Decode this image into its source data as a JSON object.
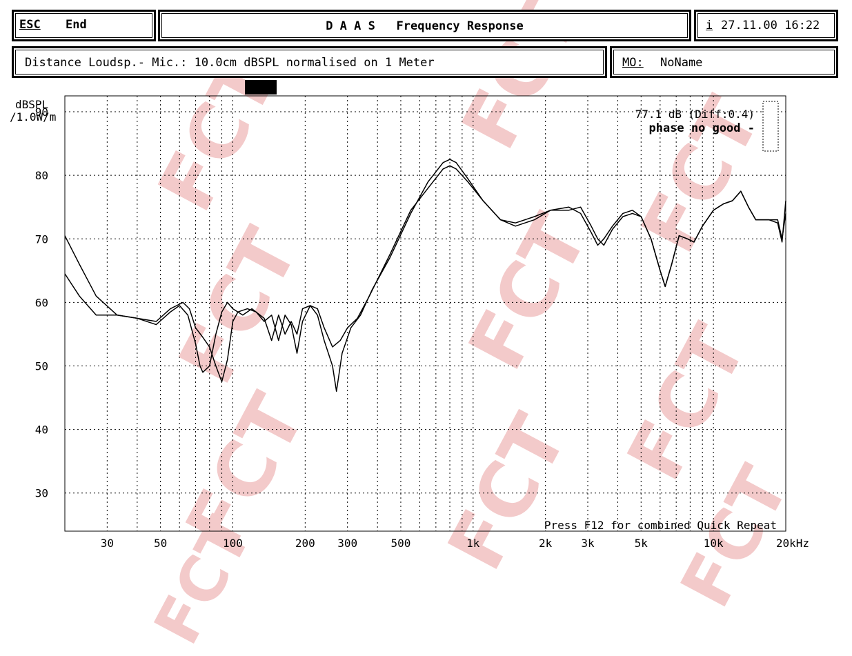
{
  "header": {
    "esc_label": "ESC",
    "end_label": "End",
    "title": "D A A S   Frequency Response",
    "info_key": "i",
    "datetime": "27.11.00 16:22"
  },
  "info_bar": {
    "distance_text": "Distance Loudsp.- Mic.: 10.0cm dBSPL normalised on 1 Meter",
    "mo_key": "MO:",
    "mo_value": "NoName"
  },
  "watermark": {
    "text": "FCT",
    "color": "#f3caca"
  },
  "chart_data": {
    "type": "line",
    "ylabel": "dBSPL\n/1.0W/m",
    "ylim": [
      24,
      92.5
    ],
    "yticks": [
      30,
      40,
      50,
      60,
      70,
      80,
      90
    ],
    "xscale": "log",
    "xlim": [
      20,
      20000
    ],
    "xticks": [
      {
        "value": 30,
        "label": "30"
      },
      {
        "value": 50,
        "label": "50"
      },
      {
        "value": 100,
        "label": "100"
      },
      {
        "value": 200,
        "label": "200"
      },
      {
        "value": 300,
        "label": "300"
      },
      {
        "value": 500,
        "label": "500"
      },
      {
        "value": 1000,
        "label": "1k"
      },
      {
        "value": 2000,
        "label": "2k"
      },
      {
        "value": 3000,
        "label": "3k"
      },
      {
        "value": 5000,
        "label": "5k"
      },
      {
        "value": 10000,
        "label": "10k"
      },
      {
        "value": 20000,
        "label": "20kHz"
      }
    ],
    "grid": true,
    "annotations": {
      "level": "77.1 dB (Diff:0.4)",
      "phase": "phase no good -",
      "footer": "Press F12 for combined Quick Repeat"
    },
    "series": [
      {
        "points": [
          [
            20,
            64.5
          ],
          [
            23,
            61
          ],
          [
            27,
            58
          ],
          [
            33,
            58
          ],
          [
            40,
            57.5
          ],
          [
            48,
            56.5
          ],
          [
            55,
            58.5
          ],
          [
            60,
            59.5
          ],
          [
            65,
            58
          ],
          [
            70,
            53.5
          ],
          [
            73,
            50
          ],
          [
            75,
            49
          ],
          [
            80,
            50
          ],
          [
            85,
            55
          ],
          [
            90,
            58.5
          ],
          [
            95,
            60
          ],
          [
            100,
            59
          ],
          [
            110,
            58
          ],
          [
            120,
            59
          ],
          [
            135,
            57.5
          ],
          [
            145,
            54
          ],
          [
            155,
            58
          ],
          [
            165,
            55
          ],
          [
            175,
            57
          ],
          [
            185,
            55
          ],
          [
            195,
            59
          ],
          [
            210,
            59.5
          ],
          [
            225,
            58
          ],
          [
            240,
            54
          ],
          [
            260,
            50
          ],
          [
            270,
            46
          ],
          [
            285,
            52
          ],
          [
            310,
            56
          ],
          [
            340,
            58
          ],
          [
            380,
            62
          ],
          [
            450,
            67
          ],
          [
            550,
            74
          ],
          [
            650,
            79
          ],
          [
            750,
            82
          ],
          [
            800,
            82.5
          ],
          [
            850,
            82
          ],
          [
            950,
            79.5
          ],
          [
            1100,
            76
          ],
          [
            1300,
            73
          ],
          [
            1500,
            72.5
          ],
          [
            1800,
            73.5
          ],
          [
            2100,
            74.5
          ],
          [
            2500,
            75
          ],
          [
            2800,
            74
          ],
          [
            3100,
            71
          ],
          [
            3300,
            69
          ],
          [
            3500,
            70
          ],
          [
            3800,
            72
          ],
          [
            4200,
            74
          ],
          [
            4600,
            74.5
          ],
          [
            5000,
            73.5
          ],
          [
            5500,
            70
          ],
          [
            6000,
            65
          ],
          [
            6300,
            62.5
          ],
          [
            6700,
            66
          ],
          [
            7200,
            70.5
          ],
          [
            7800,
            70
          ],
          [
            8300,
            69.5
          ],
          [
            9000,
            72
          ],
          [
            10000,
            74.5
          ],
          [
            11000,
            75.5
          ],
          [
            12000,
            76
          ],
          [
            13000,
            77.5
          ],
          [
            14000,
            75
          ],
          [
            15000,
            73
          ],
          [
            17000,
            73
          ],
          [
            18500,
            72.5
          ],
          [
            19300,
            69.5
          ],
          [
            20000,
            76
          ]
        ]
      },
      {
        "points": [
          [
            20,
            70.5
          ],
          [
            23,
            66
          ],
          [
            27,
            61
          ],
          [
            33,
            58
          ],
          [
            40,
            57.5
          ],
          [
            48,
            57
          ],
          [
            55,
            59
          ],
          [
            62,
            60
          ],
          [
            66,
            59
          ],
          [
            70,
            56
          ],
          [
            75,
            54.5
          ],
          [
            80,
            53
          ],
          [
            85,
            50
          ],
          [
            90,
            47.5
          ],
          [
            95,
            51
          ],
          [
            100,
            57
          ],
          [
            105,
            58.5
          ],
          [
            115,
            59
          ],
          [
            125,
            58.5
          ],
          [
            135,
            57
          ],
          [
            145,
            58
          ],
          [
            155,
            54
          ],
          [
            165,
            58
          ],
          [
            175,
            56.5
          ],
          [
            185,
            52
          ],
          [
            195,
            57
          ],
          [
            210,
            59.5
          ],
          [
            225,
            59
          ],
          [
            240,
            56
          ],
          [
            260,
            53
          ],
          [
            280,
            54
          ],
          [
            300,
            56
          ],
          [
            330,
            57.5
          ],
          [
            370,
            61
          ],
          [
            450,
            67.5
          ],
          [
            550,
            74.5
          ],
          [
            650,
            78
          ],
          [
            750,
            81
          ],
          [
            800,
            81.5
          ],
          [
            850,
            81
          ],
          [
            950,
            79
          ],
          [
            1100,
            76
          ],
          [
            1300,
            73
          ],
          [
            1500,
            72
          ],
          [
            1800,
            73
          ],
          [
            2100,
            74.5
          ],
          [
            2500,
            74.5
          ],
          [
            2800,
            75
          ],
          [
            3100,
            72
          ],
          [
            3300,
            70
          ],
          [
            3500,
            69
          ],
          [
            3800,
            71.5
          ],
          [
            4200,
            73.5
          ],
          [
            4600,
            74
          ],
          [
            5000,
            73.5
          ],
          [
            5500,
            70
          ],
          [
            6000,
            65
          ],
          [
            6300,
            62.5
          ],
          [
            6700,
            66
          ],
          [
            7200,
            70.5
          ],
          [
            7800,
            70
          ],
          [
            8300,
            69.5
          ],
          [
            9000,
            72
          ],
          [
            10000,
            74.5
          ],
          [
            11000,
            75.5
          ],
          [
            12000,
            76
          ],
          [
            13000,
            77.5
          ],
          [
            14000,
            75
          ],
          [
            15000,
            73
          ],
          [
            17000,
            73
          ],
          [
            18500,
            73
          ],
          [
            19300,
            70
          ],
          [
            20000,
            74
          ]
        ]
      }
    ]
  }
}
